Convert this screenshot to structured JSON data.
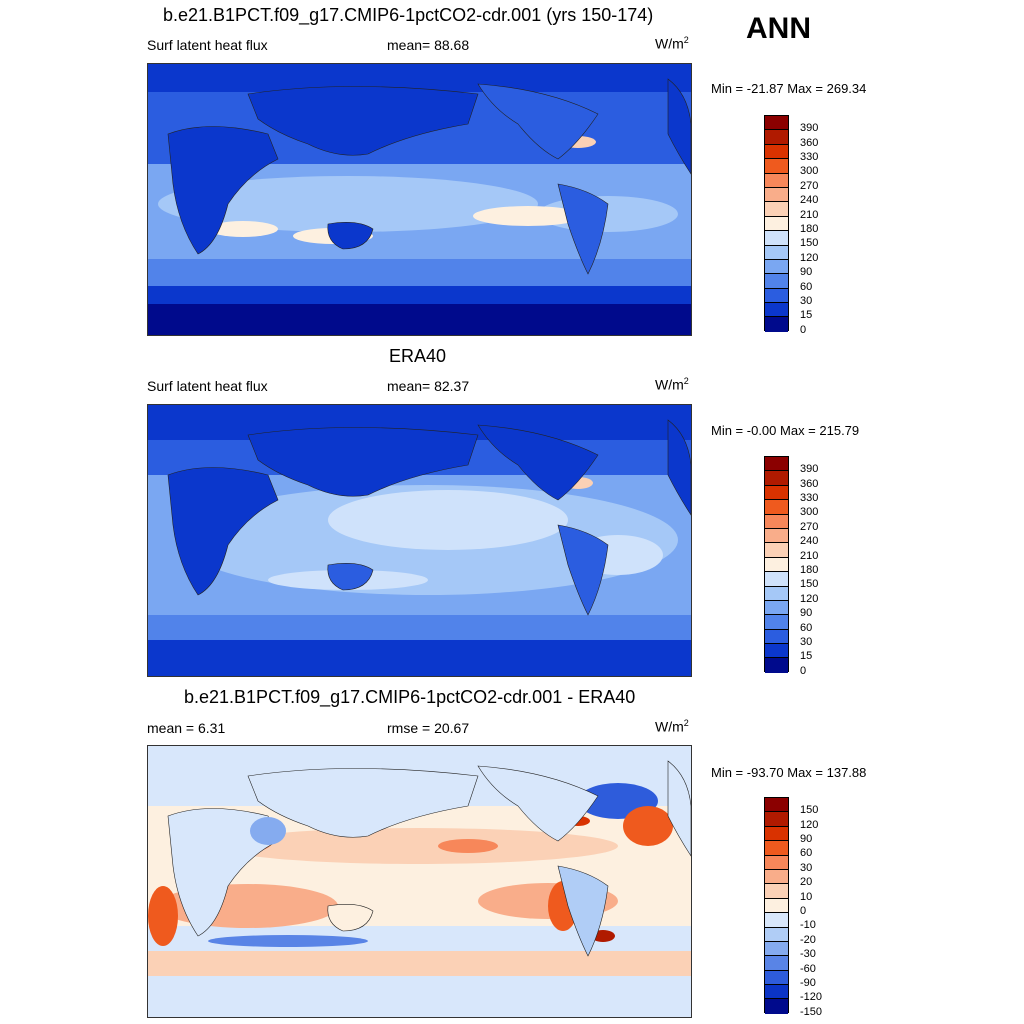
{
  "season": "ANN",
  "panels": [
    {
      "title": "b.e21.B1PCT.f09_g17.CMIP6-1pctCO2-cdr.001 (yrs 150-174)",
      "left_label": "Surf latent heat flux",
      "center_label": "mean=  88.68",
      "units": "W/m",
      "units_sup": "2",
      "minmax": "Min = -21.87 Max = 269.34",
      "levels": [
        "390",
        "360",
        "330",
        "300",
        "270",
        "240",
        "210",
        "180",
        "150",
        "120",
        "90",
        "60",
        "30",
        "15",
        "0"
      ],
      "colors": [
        "#8b0000",
        "#b01a00",
        "#d93200",
        "#ef5a1e",
        "#f7875a",
        "#f9ad8a",
        "#fbd1b6",
        "#fdf0e0",
        "#cfe2fb",
        "#a5c8f7",
        "#7aa7f2",
        "#5183ea",
        "#2b5de0",
        "#0b37cc",
        "#000a8c"
      ]
    },
    {
      "title": "ERA40",
      "left_label": "Surf latent heat flux",
      "center_label": "mean=  82.37",
      "units": "W/m",
      "units_sup": "2",
      "minmax": "Min =  -0.00 Max = 215.79",
      "levels": [
        "390",
        "360",
        "330",
        "300",
        "270",
        "240",
        "210",
        "180",
        "150",
        "120",
        "90",
        "60",
        "30",
        "15",
        "0"
      ],
      "colors": [
        "#8b0000",
        "#b01a00",
        "#d93200",
        "#ef5a1e",
        "#f7875a",
        "#f9ad8a",
        "#fbd1b6",
        "#fdf0e0",
        "#cfe2fb",
        "#a5c8f7",
        "#7aa7f2",
        "#5183ea",
        "#2b5de0",
        "#0b37cc",
        "#000a8c"
      ]
    },
    {
      "title": "b.e21.B1PCT.f09_g17.CMIP6-1pctCO2-cdr.001 - ERA40",
      "left_label": "mean =   6.31",
      "center_label": "rmse =  20.67",
      "units": "W/m",
      "units_sup": "2",
      "minmax": "Min = -93.70 Max = 137.88",
      "levels": [
        "150",
        "120",
        "90",
        "60",
        "30",
        "20",
        "10",
        "0",
        "-10",
        "-20",
        "-30",
        "-60",
        "-90",
        "-120",
        "-150"
      ],
      "colors": [
        "#8b0000",
        "#b01a00",
        "#d93200",
        "#ef5a1e",
        "#f7875a",
        "#f9ad8a",
        "#fbd1b6",
        "#fdf0e0",
        "#d8e7fb",
        "#b0cdf6",
        "#85abef",
        "#5984e6",
        "#2e5cdb",
        "#0b34c6",
        "#000a8c"
      ]
    }
  ]
}
